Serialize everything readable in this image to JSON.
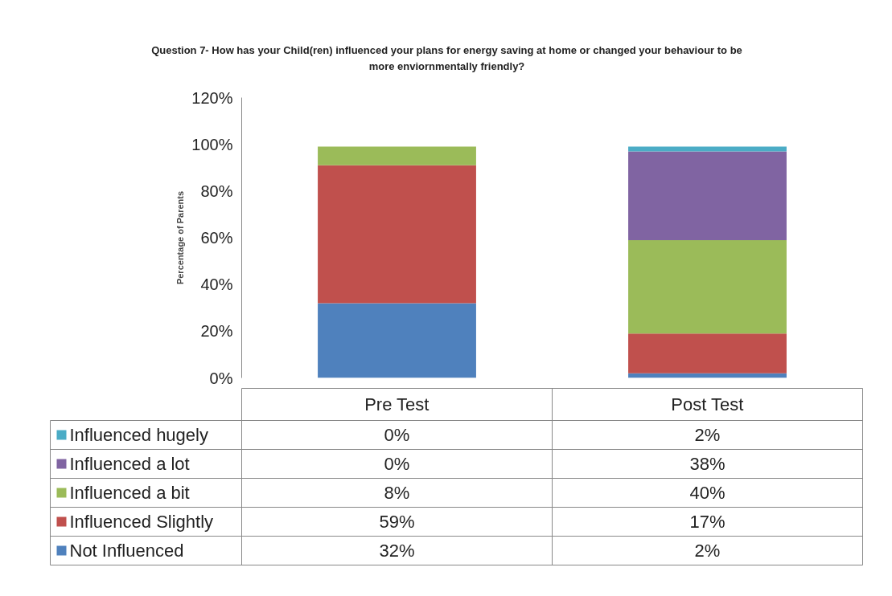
{
  "chart_data": {
    "type": "bar",
    "stacked": true,
    "title": "Question 7- How has your Child(ren) influenced your plans for energy saving at home or changed your behaviour to be more enviornmentally friendly?",
    "ylabel": "Percentage of Parents",
    "categories": [
      "Pre Test",
      "Post Test"
    ],
    "ylim": [
      0,
      120
    ],
    "yticks": [
      {
        "value": 0,
        "label": "0%"
      },
      {
        "value": 20,
        "label": "20%"
      },
      {
        "value": 40,
        "label": "40%"
      },
      {
        "value": 60,
        "label": "60%"
      },
      {
        "value": 80,
        "label": "80%"
      },
      {
        "value": 100,
        "label": "100%"
      },
      {
        "value": 120,
        "label": "120%"
      }
    ],
    "legend": "bottom",
    "series": [
      {
        "name": "Not Influenced",
        "color": "#4f81bd",
        "values": [
          32,
          2
        ],
        "value_labels": [
          "32%",
          "2%"
        ]
      },
      {
        "name": "Influenced Slightly",
        "color": "#c0504d",
        "values": [
          59,
          17
        ],
        "value_labels": [
          "59%",
          "17%"
        ]
      },
      {
        "name": "Influenced a bit",
        "color": "#9bbb59",
        "values": [
          8,
          40
        ],
        "value_labels": [
          "8%",
          "40%"
        ]
      },
      {
        "name": "Influenced a lot",
        "color": "#8064a2",
        "values": [
          0,
          38
        ],
        "value_labels": [
          "0%",
          "38%"
        ]
      },
      {
        "name": "Influenced hugely",
        "color": "#4bacc6",
        "values": [
          0,
          2
        ],
        "value_labels": [
          "0%",
          "2%"
        ]
      }
    ]
  }
}
